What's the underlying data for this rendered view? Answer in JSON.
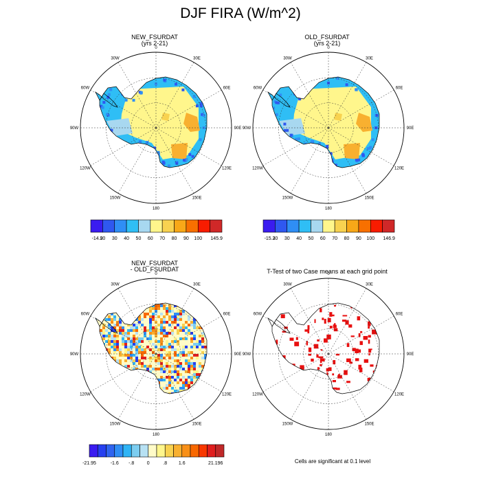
{
  "title": "DJF FIRA (W/m^2)",
  "panels": [
    {
      "title": "NEW_FSURDAT",
      "subtitle": "(yrs 2-21)"
    },
    {
      "title": "OLD_FSURDAT",
      "subtitle": "(yrs 2-21)"
    },
    {
      "title": "NEW_FSURDAT",
      "subtitle": "- OLD_FSURDAT"
    },
    {
      "title": "T-Test of two Case means at each grid point",
      "subtitle": ""
    }
  ],
  "map_labels": {
    "top": "0",
    "bottom": "180",
    "left": "90W",
    "right": "90E",
    "upper_left_1": "30W",
    "upper_left_2": "60W",
    "upper_right_1": "30E",
    "upper_right_2": "60E",
    "lower_left_1": "120W",
    "lower_left_2": "150W",
    "lower_right_1": "120E",
    "lower_right_2": "150E"
  },
  "colorbars": [
    {
      "labels": [
        "-14.9",
        "20",
        "30",
        "40",
        "50",
        "60",
        "70",
        "80",
        "90",
        "100",
        "145.9"
      ],
      "colors": [
        "#3a1cf0",
        "#2f58f0",
        "#2f8ef5",
        "#2fbef5",
        "#a8d8f0",
        "#fff68c",
        "#f8d250",
        "#f8a818",
        "#f87000",
        "#f81c00",
        "#d02828"
      ]
    },
    {
      "labels": [
        "-15.3",
        "20",
        "30",
        "40",
        "50",
        "60",
        "70",
        "80",
        "90",
        "100",
        "146.9"
      ],
      "colors": [
        "#3a1cf0",
        "#2f58f0",
        "#2f8ef5",
        "#2fbef5",
        "#a8d8f0",
        "#fff68c",
        "#f8d250",
        "#f8a818",
        "#f87000",
        "#f81c00",
        "#d02828"
      ]
    },
    {
      "labels": [
        "-21.95",
        "-1.6",
        "-.8",
        "0",
        ".8",
        "1.6",
        "21.196"
      ],
      "colors": [
        "#3a1cf0",
        "#2640f0",
        "#2f64f0",
        "#2f8ef5",
        "#2fb4f5",
        "#7ccdf0",
        "#b7e1f3",
        "#fffbc8",
        "#fff68c",
        "#f8d250",
        "#f8b030",
        "#f89018",
        "#f86800",
        "#f83800",
        "#e01e1e",
        "#c02828"
      ],
      "label_positions": [
        0,
        3,
        5,
        7,
        9,
        11,
        15
      ]
    }
  ],
  "note": "Cells are significant at 0.1 level"
}
